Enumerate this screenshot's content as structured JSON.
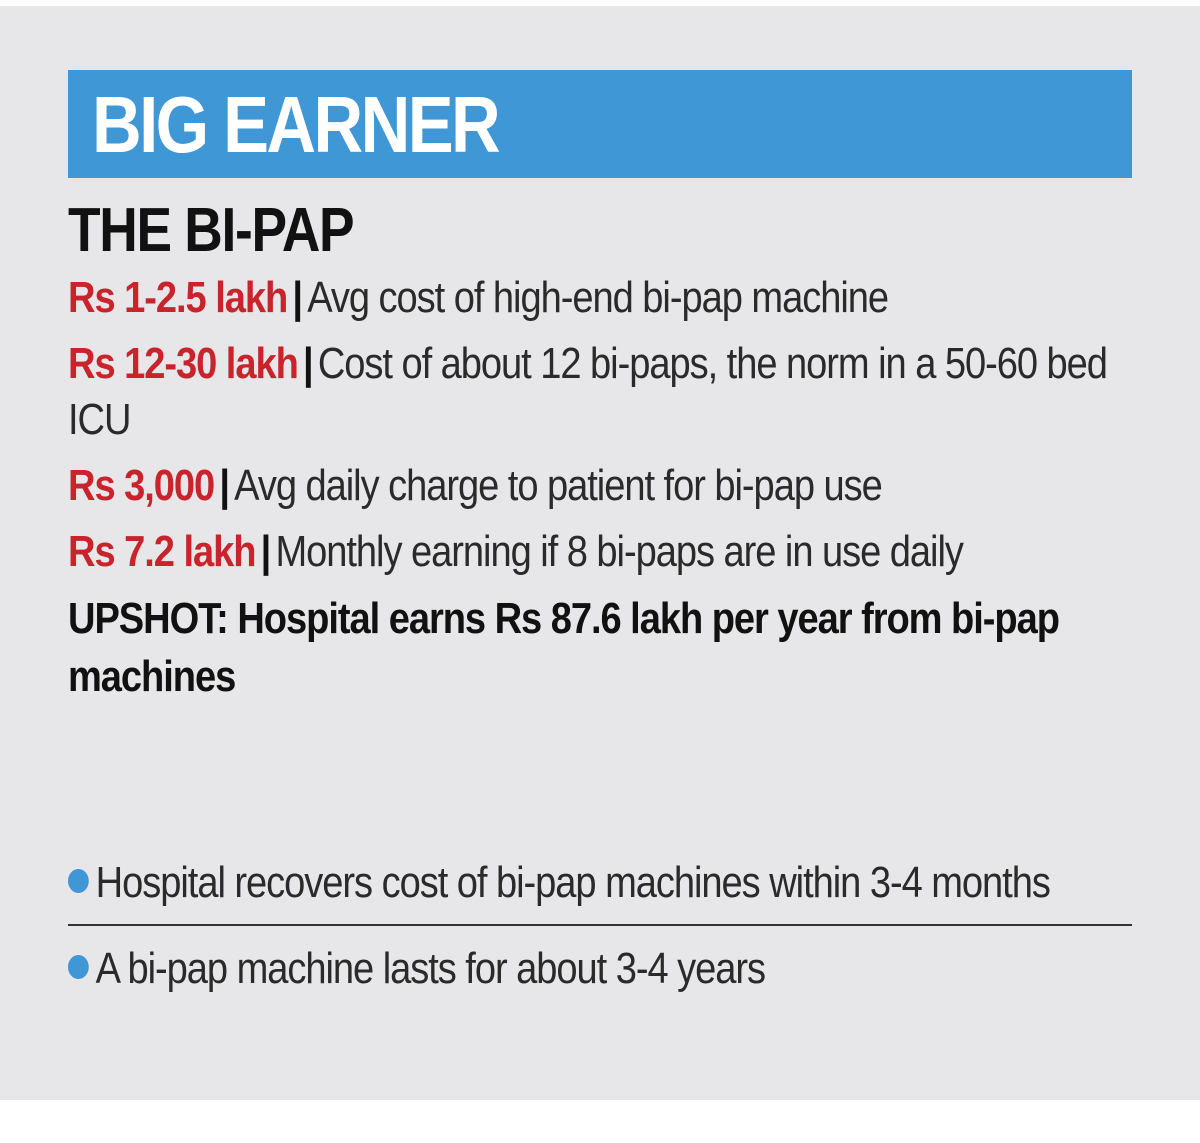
{
  "banner": {
    "title": "BIG EARNER",
    "color": "#3f97d6"
  },
  "subhead": "THE BI-PAP",
  "facts": [
    {
      "amount": "Rs 1-2.5 lakh",
      "separator": "|",
      "text": "Avg cost of high-end bi-pap machine"
    },
    {
      "amount": "Rs 12-30 lakh",
      "separator": "|",
      "text": "Cost of about 12 bi-paps, the norm in a 50-60 bed ICU"
    },
    {
      "amount": "Rs 3,000",
      "separator": "|",
      "text": "Avg daily charge to patient for bi-pap use"
    },
    {
      "amount": "Rs 7.2 lakh",
      "separator": "|",
      "text": "Monthly earning if 8 bi-paps are in use daily"
    }
  ],
  "upshot": "UPSHOT: Hospital earns Rs 87.6 lakh per year from bi-pap machines",
  "bullets": [
    "Hospital recovers cost of bi-pap machines within 3-4 months",
    "A bi-pap machine lasts for about 3-4 years"
  ],
  "colors": {
    "amount": "#c9242b",
    "background": "#e7e7e9",
    "bullet": "#3f97d6"
  }
}
